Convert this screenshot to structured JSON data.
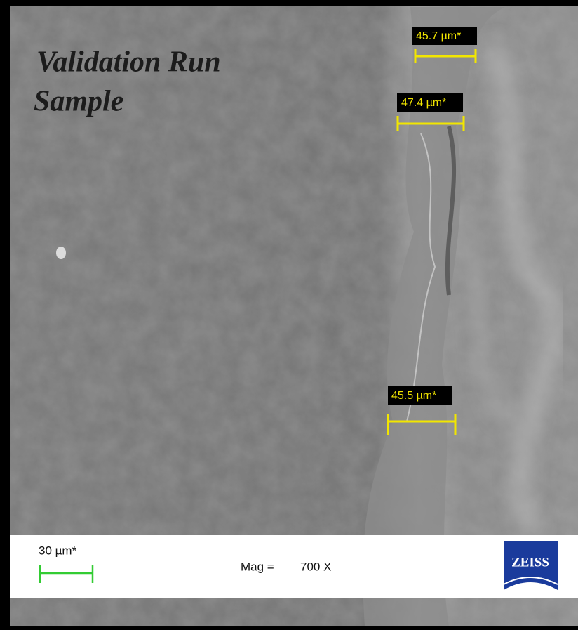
{
  "title": {
    "lines": [
      "Validation Run",
      "Sample"
    ]
  },
  "measurements": [
    {
      "label": "45.7 µm*"
    },
    {
      "label": "47.4 µm*"
    },
    {
      "label": "45.5 µm*"
    }
  ],
  "info_bar": {
    "scale_label": "30 µm*",
    "mag_label": "Mag =",
    "mag_value": "700 X",
    "logo": "ZEISS"
  }
}
